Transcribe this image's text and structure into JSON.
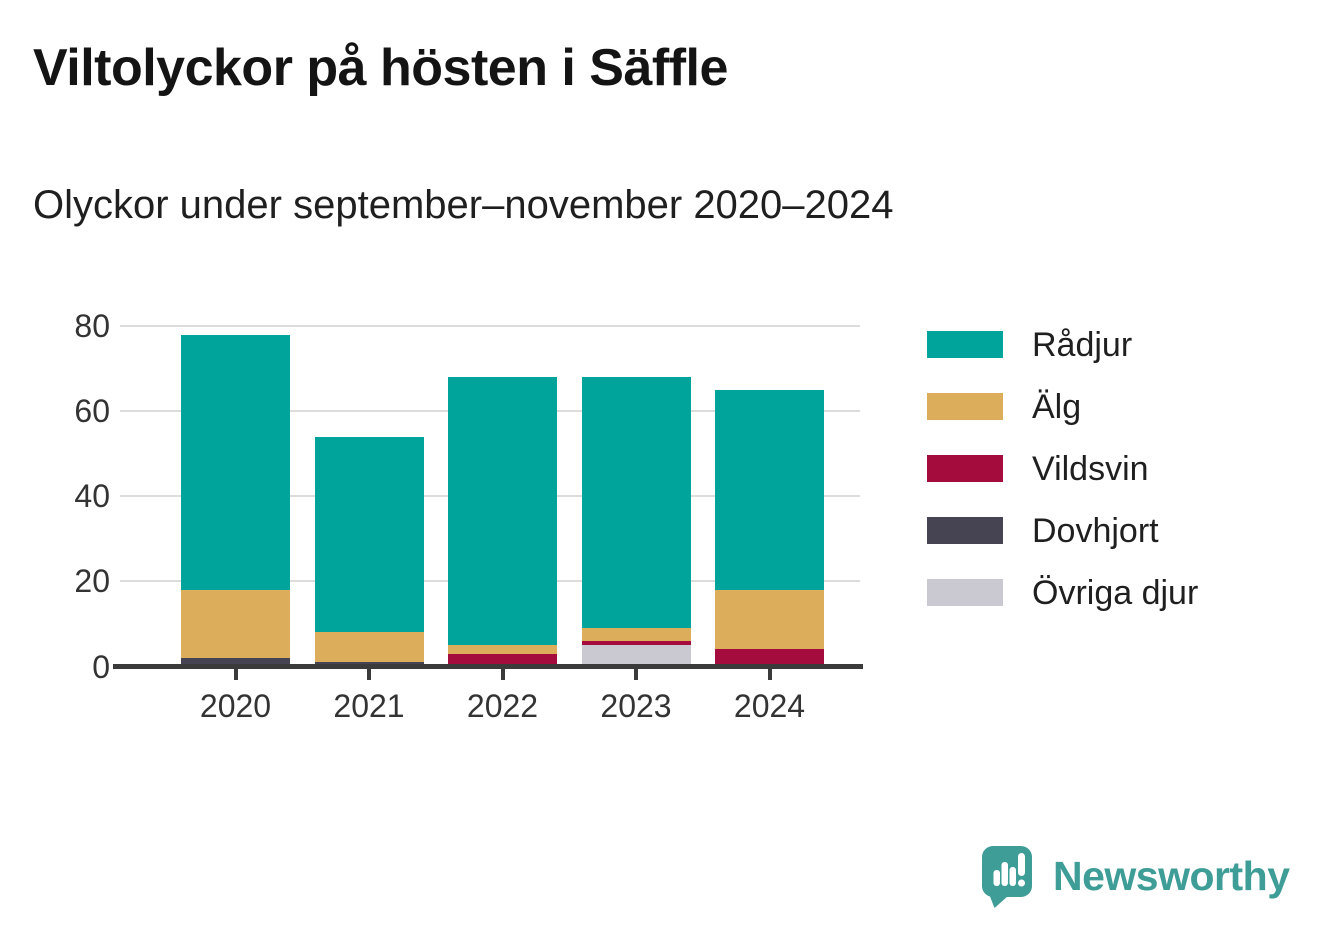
{
  "header": {
    "title": "Viltolyckor på hösten i Säffle",
    "subtitle": "Olyckor under september–november 2020–2024"
  },
  "footer": {
    "brand": "Newsworthy",
    "brand_color": "#3e9d96"
  },
  "chart_data": {
    "type": "bar",
    "stacked": true,
    "title": "Viltolyckor på hösten i Säffle",
    "subtitle": "Olyckor under september–november 2020–2024",
    "categories": [
      "2020",
      "2021",
      "2022",
      "2023",
      "2024"
    ],
    "series": [
      {
        "name": "Rådjur",
        "color": "#00a49b",
        "values": [
          60,
          46,
          63,
          59,
          47
        ]
      },
      {
        "name": "Älg",
        "color": "#dcad5a",
        "values": [
          16,
          7,
          2,
          3,
          14
        ]
      },
      {
        "name": "Vildsvin",
        "color": "#a40c3e",
        "values": [
          0,
          0,
          3,
          1,
          4
        ]
      },
      {
        "name": "Dovhjort",
        "color": "#464352",
        "values": [
          2,
          1,
          0,
          0,
          0
        ]
      },
      {
        "name": "Övriga djur",
        "color": "#cac9d2",
        "values": [
          0,
          0,
          0,
          5,
          0
        ]
      }
    ],
    "totals": [
      78,
      54,
      68,
      68,
      65
    ],
    "xlabel": "",
    "ylabel": "",
    "ylim": [
      0,
      80
    ],
    "yticks": [
      0,
      20,
      40,
      60,
      80
    ],
    "grid": "horizontal",
    "gridline_color": "#dcdcdc",
    "axis_color": "#3b3b3b",
    "legend_position": "right"
  }
}
